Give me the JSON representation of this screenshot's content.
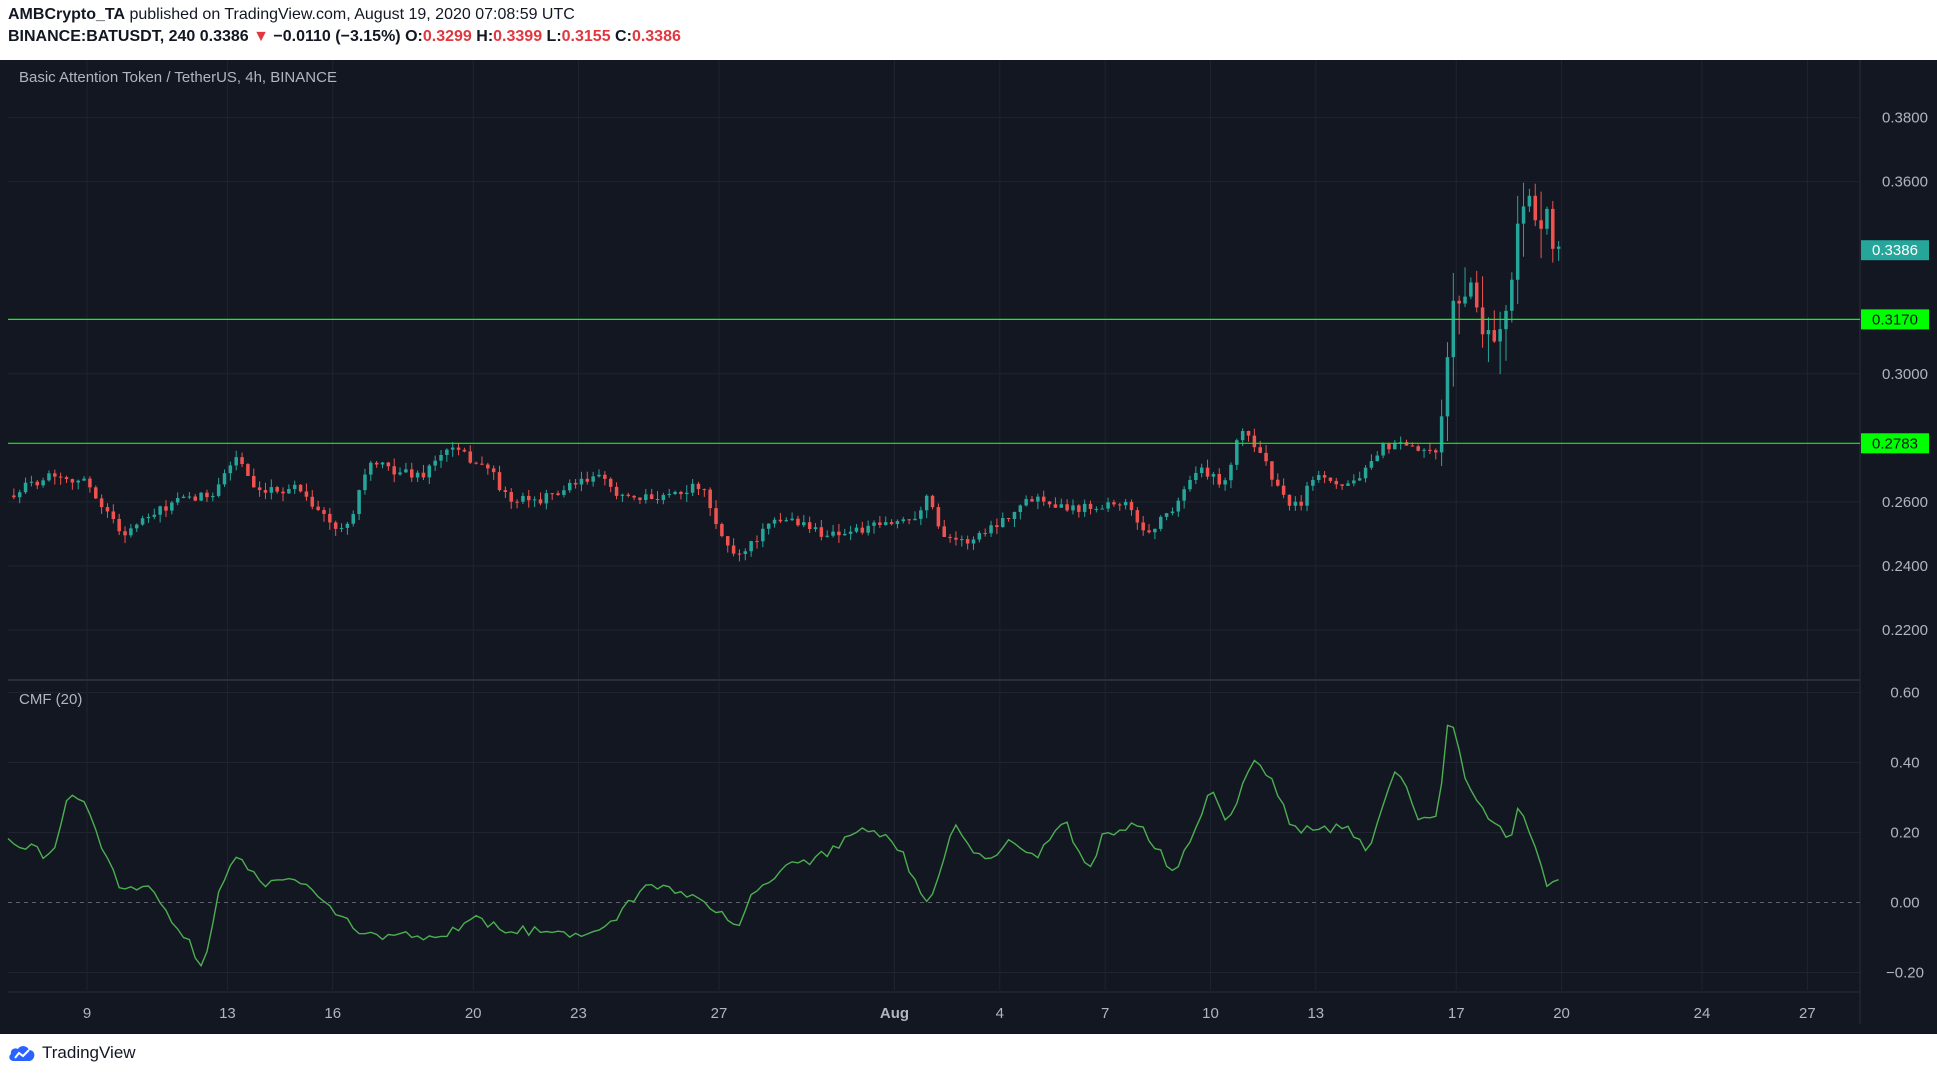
{
  "header": {
    "publisher": "AMBCrypto_TA",
    "published_line": " published on TradingView.com, August 19, 2020 07:08:59 UTC",
    "symbol": "BINANCE:BATUSDT, 240",
    "last": "0.3386",
    "change_arrow": "▼",
    "change": "−0.0110 (−3.15%)",
    "o_label": "O:",
    "o_value": "0.3299",
    "h_label": "H:",
    "h_value": "0.3399",
    "l_label": "L:",
    "l_value": "0.3155",
    "c_label": "C:",
    "c_value": "0.3386"
  },
  "footer": {
    "brand": "TradingView"
  },
  "colors": {
    "background": "#131722",
    "up": "#26a69a",
    "down": "#ef5350",
    "level_line": "#00ff00",
    "cmf_line": "#4caf50",
    "grid": "#1f2430",
    "text": "#b2b5be"
  },
  "chart_data": [
    {
      "type": "candlestick",
      "title": "Basic Attention Token / TetherUS, 4h, BINANCE",
      "y_ticks": [
        "0.3800",
        "0.3600",
        "0.3000",
        "0.2600",
        "0.2400",
        "0.2200"
      ],
      "ylim": [
        0.205,
        0.398
      ],
      "x_ticks": [
        "9",
        "13",
        "16",
        "20",
        "23",
        "27",
        "Aug",
        "4",
        "7",
        "10",
        "13",
        "17",
        "20",
        "24",
        "27"
      ],
      "x_range_days": [
        6.75,
        59.5
      ],
      "last_price_label": "0.3386",
      "horizontal_levels": [
        {
          "value": 0.317,
          "label": "0.3170"
        },
        {
          "value": 0.2783,
          "label": "0.2783"
        }
      ],
      "anchors": [
        {
          "day": 6.75,
          "close": 0.262
        },
        {
          "day": 8.0,
          "close": 0.269
        },
        {
          "day": 9.0,
          "close": 0.266
        },
        {
          "day": 10.0,
          "close": 0.25
        },
        {
          "day": 11.5,
          "close": 0.26
        },
        {
          "day": 12.5,
          "close": 0.262
        },
        {
          "day": 13.3,
          "close": 0.275
        },
        {
          "day": 13.8,
          "close": 0.262
        },
        {
          "day": 15.0,
          "close": 0.265
        },
        {
          "day": 16.2,
          "close": 0.25
        },
        {
          "day": 16.6,
          "close": 0.258
        },
        {
          "day": 17.0,
          "close": 0.272
        },
        {
          "day": 18.5,
          "close": 0.268
        },
        {
          "day": 19.3,
          "close": 0.277
        },
        {
          "day": 20.5,
          "close": 0.27
        },
        {
          "day": 21.0,
          "close": 0.26
        },
        {
          "day": 22.0,
          "close": 0.261
        },
        {
          "day": 23.5,
          "close": 0.268
        },
        {
          "day": 24.5,
          "close": 0.26
        },
        {
          "day": 26.5,
          "close": 0.265
        },
        {
          "day": 27.0,
          "close": 0.25
        },
        {
          "day": 27.5,
          "close": 0.243
        },
        {
          "day": 28.5,
          "close": 0.253
        },
        {
          "day": 29.0,
          "close": 0.255
        },
        {
          "day": 30.0,
          "close": 0.25
        },
        {
          "day": 31.0,
          "close": 0.251
        },
        {
          "day": 32.5,
          "close": 0.255
        },
        {
          "day": 33.0,
          "close": 0.262
        },
        {
          "day": 33.3,
          "close": 0.251
        },
        {
          "day": 34.0,
          "close": 0.247
        },
        {
          "day": 35.0,
          "close": 0.254
        },
        {
          "day": 36.0,
          "close": 0.262
        },
        {
          "day": 37.0,
          "close": 0.258
        },
        {
          "day": 38.5,
          "close": 0.26
        },
        {
          "day": 39.2,
          "close": 0.25
        },
        {
          "day": 40.0,
          "close": 0.259
        },
        {
          "day": 40.6,
          "close": 0.27
        },
        {
          "day": 41.4,
          "close": 0.266
        },
        {
          "day": 41.9,
          "close": 0.283
        },
        {
          "day": 42.4,
          "close": 0.276
        },
        {
          "day": 43.0,
          "close": 0.262
        },
        {
          "day": 43.5,
          "close": 0.258
        },
        {
          "day": 44.0,
          "close": 0.27
        },
        {
          "day": 44.8,
          "close": 0.265
        },
        {
          "day": 45.5,
          "close": 0.27
        },
        {
          "day": 46.0,
          "close": 0.278
        },
        {
          "day": 47.0,
          "close": 0.276
        },
        {
          "day": 47.5,
          "close": 0.274
        },
        {
          "day": 47.8,
          "close": 0.315
        },
        {
          "day": 48.3,
          "close": 0.33
        },
        {
          "day": 48.9,
          "close": 0.312
        },
        {
          "day": 49.5,
          "close": 0.318
        },
        {
          "day": 49.8,
          "close": 0.355
        },
        {
          "day": 50.0,
          "close": 0.36
        },
        {
          "day": 50.3,
          "close": 0.34
        },
        {
          "day": 50.6,
          "close": 0.352
        },
        {
          "day": 50.8,
          "close": 0.33
        },
        {
          "day": 51.0,
          "close": 0.3386
        }
      ]
    },
    {
      "type": "line",
      "title": "CMF (20)",
      "y_ticks": [
        "0.60",
        "0.40",
        "0.20",
        "0.00",
        "−0.20"
      ],
      "ylim": [
        -0.25,
        0.63
      ],
      "zero_line": 0.0,
      "x_range_days": [
        6.75,
        59.5
      ],
      "anchors": [
        {
          "day": 6.75,
          "value": 0.17
        },
        {
          "day": 7.5,
          "value": 0.15
        },
        {
          "day": 8.0,
          "value": 0.12
        },
        {
          "day": 8.5,
          "value": 0.32
        },
        {
          "day": 9.0,
          "value": 0.27
        },
        {
          "day": 9.5,
          "value": 0.14
        },
        {
          "day": 10.0,
          "value": 0.04
        },
        {
          "day": 10.8,
          "value": 0.05
        },
        {
          "day": 11.3,
          "value": -0.03
        },
        {
          "day": 11.8,
          "value": -0.1
        },
        {
          "day": 12.3,
          "value": -0.18
        },
        {
          "day": 12.8,
          "value": 0.05
        },
        {
          "day": 13.3,
          "value": 0.14
        },
        {
          "day": 14.0,
          "value": 0.05
        },
        {
          "day": 15.0,
          "value": 0.07
        },
        {
          "day": 16.0,
          "value": -0.03
        },
        {
          "day": 17.0,
          "value": -0.1
        },
        {
          "day": 18.0,
          "value": -0.08
        },
        {
          "day": 19.0,
          "value": -0.11
        },
        {
          "day": 20.0,
          "value": -0.04
        },
        {
          "day": 21.0,
          "value": -0.08
        },
        {
          "day": 22.0,
          "value": -0.08
        },
        {
          "day": 23.0,
          "value": -0.1
        },
        {
          "day": 24.0,
          "value": -0.05
        },
        {
          "day": 25.0,
          "value": 0.05
        },
        {
          "day": 26.0,
          "value": 0.03
        },
        {
          "day": 27.0,
          "value": -0.02
        },
        {
          "day": 27.5,
          "value": -0.07
        },
        {
          "day": 28.0,
          "value": 0.03
        },
        {
          "day": 29.0,
          "value": 0.1
        },
        {
          "day": 30.0,
          "value": 0.14
        },
        {
          "day": 31.0,
          "value": 0.2
        },
        {
          "day": 32.0,
          "value": 0.18
        },
        {
          "day": 33.0,
          "value": -0.01
        },
        {
          "day": 33.7,
          "value": 0.22
        },
        {
          "day": 34.5,
          "value": 0.12
        },
        {
          "day": 35.5,
          "value": 0.18
        },
        {
          "day": 36.0,
          "value": 0.12
        },
        {
          "day": 36.8,
          "value": 0.24
        },
        {
          "day": 37.5,
          "value": 0.09
        },
        {
          "day": 38.0,
          "value": 0.2
        },
        {
          "day": 39.0,
          "value": 0.22
        },
        {
          "day": 40.0,
          "value": 0.08
        },
        {
          "day": 41.0,
          "value": 0.32
        },
        {
          "day": 41.5,
          "value": 0.23
        },
        {
          "day": 42.3,
          "value": 0.42
        },
        {
          "day": 42.8,
          "value": 0.33
        },
        {
          "day": 43.3,
          "value": 0.22
        },
        {
          "day": 44.0,
          "value": 0.2
        },
        {
          "day": 44.8,
          "value": 0.22
        },
        {
          "day": 45.5,
          "value": 0.15
        },
        {
          "day": 46.3,
          "value": 0.38
        },
        {
          "day": 47.0,
          "value": 0.23
        },
        {
          "day": 47.5,
          "value": 0.26
        },
        {
          "day": 47.8,
          "value": 0.54
        },
        {
          "day": 48.3,
          "value": 0.35
        },
        {
          "day": 48.9,
          "value": 0.24
        },
        {
          "day": 49.5,
          "value": 0.18
        },
        {
          "day": 49.8,
          "value": 0.28
        },
        {
          "day": 50.2,
          "value": 0.18
        },
        {
          "day": 50.6,
          "value": 0.04
        },
        {
          "day": 51.0,
          "value": 0.08
        }
      ]
    }
  ]
}
